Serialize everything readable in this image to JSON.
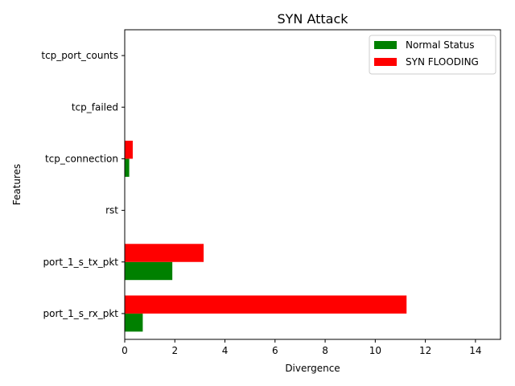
{
  "chart_data": {
    "type": "bar",
    "orientation": "horizontal",
    "title": "SYN Attack",
    "xlabel": "Divergence",
    "ylabel": "Features",
    "xlim": [
      0,
      15
    ],
    "xticks": [
      "0",
      "2",
      "4",
      "6",
      "8",
      "10",
      "12",
      "14"
    ],
    "categories": [
      "port_1_s_rx_pkt",
      "port_1_s_tx_pkt",
      "rst",
      "tcp_connection",
      "tcp_failed",
      "tcp_port_counts"
    ],
    "series": [
      {
        "name": "Normal Status",
        "color": "#008000",
        "values": [
          0.72,
          1.9,
          0,
          0.18,
          0,
          0
        ]
      },
      {
        "name": "SYN FLOODING",
        "color": "#ff0000",
        "values": [
          11.25,
          3.15,
          0,
          0.32,
          0,
          0
        ]
      }
    ],
    "legend_position": "upper-right",
    "grid": false
  }
}
